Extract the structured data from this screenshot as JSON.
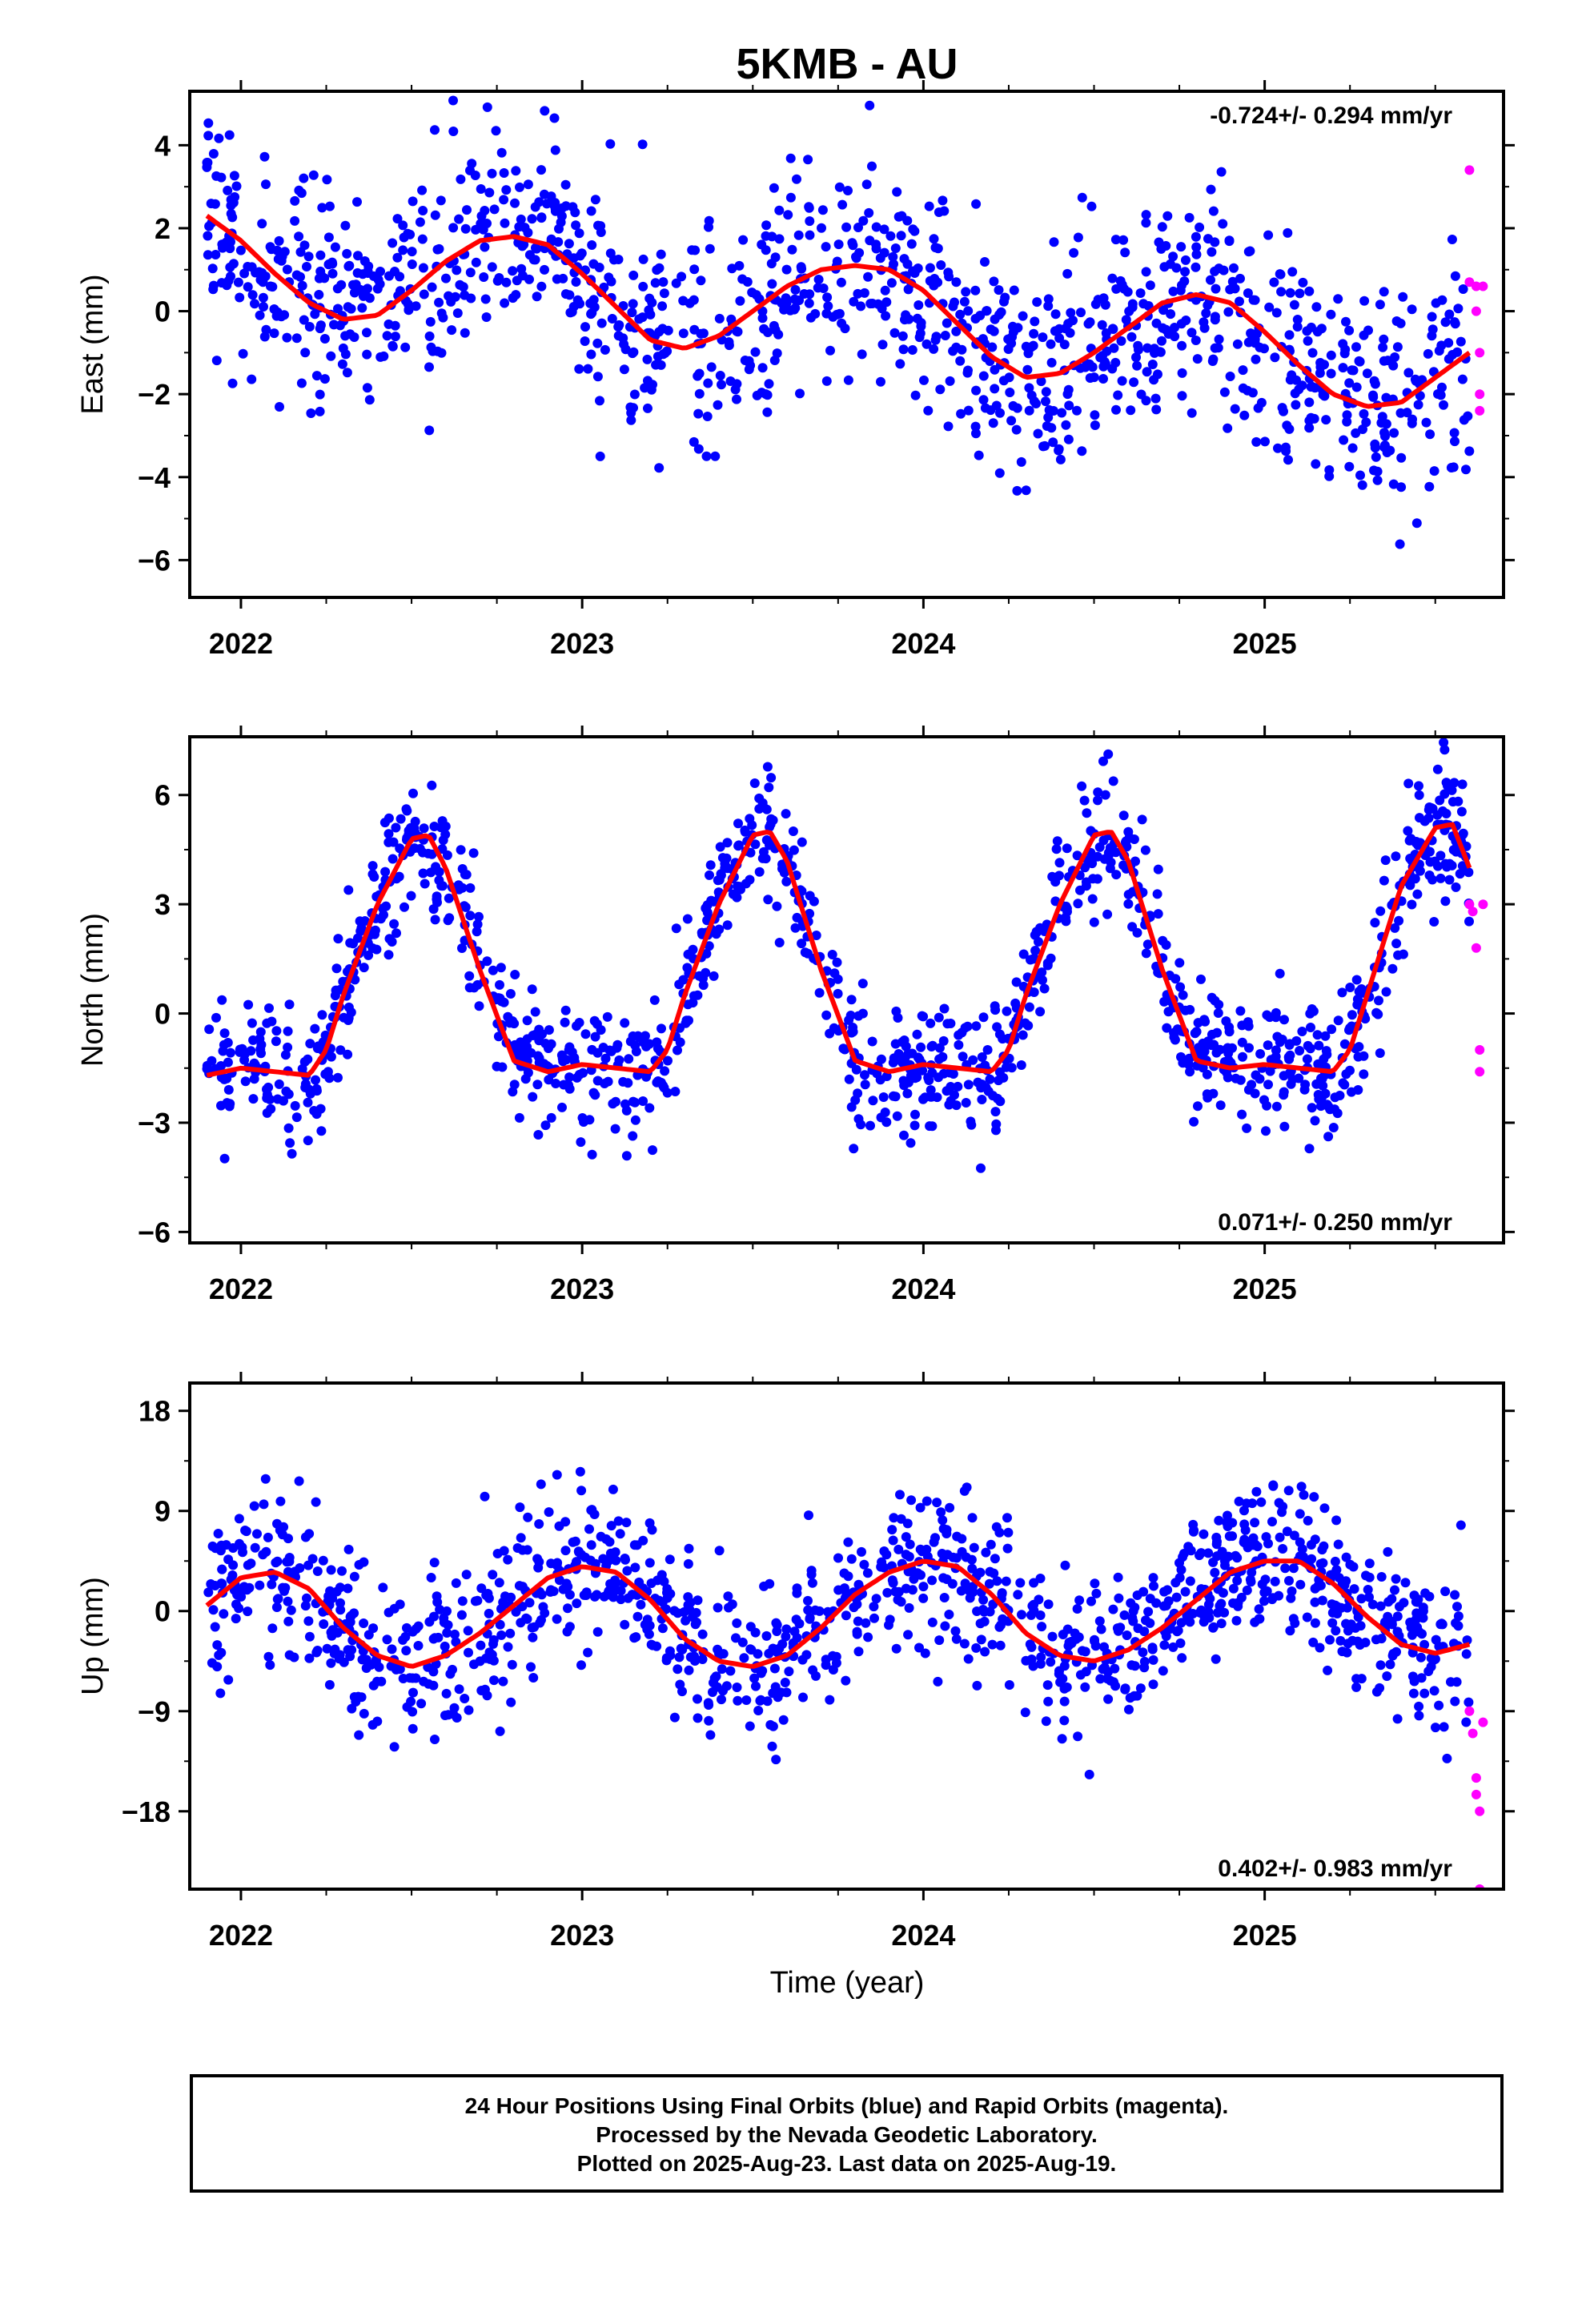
{
  "title": "5KMB - AU",
  "xlabel": "Time (year)",
  "footer": {
    "line1": "24 Hour Positions Using Final Orbits (blue) and Rapid Orbits (magenta).",
    "line2": "Processed by the Nevada Geodetic Laboratory.",
    "line3": "Plotted on 2025-Aug-23. Last data on 2025-Aug-19."
  },
  "colors": {
    "final": "#0000ff",
    "rapid": "#ff00ff",
    "fit": "#ff0000",
    "frame": "#000000"
  },
  "chart_data": [
    {
      "type": "scatter",
      "panel": "east",
      "ylabel": "East (mm)",
      "rate_text": "-0.724+/- 0.294 mm/yr",
      "rate_position": "top-right",
      "xlim": [
        2021.85,
        2025.7
      ],
      "ylim": [
        -6.9,
        5.3
      ],
      "yticks": [
        -6,
        -4,
        -2,
        0,
        2,
        4
      ],
      "xticks": [
        2022,
        2023,
        2024,
        2025
      ],
      "fit_curve": {
        "x": [
          2021.9,
          2022.0,
          2022.1,
          2022.2,
          2022.3,
          2022.4,
          2022.5,
          2022.6,
          2022.7,
          2022.8,
          2022.9,
          2023.0,
          2023.1,
          2023.2,
          2023.3,
          2023.4,
          2023.5,
          2023.6,
          2023.7,
          2023.8,
          2023.9,
          2024.0,
          2024.1,
          2024.2,
          2024.3,
          2024.4,
          2024.5,
          2024.6,
          2024.7,
          2024.8,
          2024.9,
          2025.0,
          2025.1,
          2025.2,
          2025.3,
          2025.4,
          2025.5,
          2025.6
        ],
        "y": [
          2.3,
          1.7,
          0.9,
          0.2,
          -0.2,
          -0.1,
          0.5,
          1.2,
          1.7,
          1.8,
          1.6,
          0.9,
          0.1,
          -0.7,
          -0.9,
          -0.6,
          0.0,
          0.6,
          1.0,
          1.1,
          1.0,
          0.5,
          -0.3,
          -1.1,
          -1.6,
          -1.5,
          -1.0,
          -0.4,
          0.2,
          0.4,
          0.2,
          -0.5,
          -1.3,
          -2.0,
          -2.3,
          -2.2,
          -1.6,
          -1.0
        ]
      },
      "final_points": {
        "count": 1250,
        "x_range": [
          2021.9,
          2025.6
        ],
        "envelope_x": [
          2021.9,
          2022.2,
          2022.5,
          2022.8,
          2023.0,
          2023.3,
          2023.6,
          2023.9,
          2024.2,
          2024.5,
          2024.8,
          2025.1,
          2025.4,
          2025.6
        ],
        "envelope_y": [
          2.3,
          0.0,
          0.6,
          1.9,
          0.8,
          -1.0,
          0.5,
          1.2,
          -1.2,
          -1.4,
          0.4,
          -1.6,
          -2.2,
          -1.0
        ],
        "spread": 1.3
      },
      "rapid_points": {
        "x": [
          2025.6,
          2025.6,
          2025.62,
          2025.62,
          2025.63,
          2025.63,
          2025.63,
          2025.64
        ],
        "y": [
          3.4,
          0.7,
          0.6,
          0.0,
          -2.0,
          -2.4,
          -1.0,
          0.6
        ]
      }
    },
    {
      "type": "scatter",
      "panel": "north",
      "ylabel": "North (mm)",
      "rate_text": "0.071+/- 0.250 mm/yr",
      "rate_position": "bottom-right",
      "xlim": [
        2021.85,
        2025.7
      ],
      "ylim": [
        -6.3,
        7.6
      ],
      "yticks": [
        -6,
        -3,
        0,
        3,
        6
      ],
      "xticks": [
        2022,
        2023,
        2024,
        2025
      ],
      "fit_curve": {
        "x": [
          2021.9,
          2022.0,
          2022.1,
          2022.2,
          2022.25,
          2022.3,
          2022.4,
          2022.5,
          2022.55,
          2022.6,
          2022.7,
          2022.8,
          2022.9,
          2023.0,
          2023.1,
          2023.2,
          2023.25,
          2023.3,
          2023.4,
          2023.5,
          2023.55,
          2023.6,
          2023.7,
          2023.8,
          2023.9,
          2024.0,
          2024.1,
          2024.2,
          2024.25,
          2024.3,
          2024.4,
          2024.5,
          2024.55,
          2024.6,
          2024.7,
          2024.8,
          2024.9,
          2025.0,
          2025.1,
          2025.2,
          2025.25,
          2025.3,
          2025.4,
          2025.5,
          2025.55,
          2025.6
        ],
        "y": [
          -1.7,
          -1.5,
          -1.6,
          -1.7,
          -1.0,
          0.5,
          3.0,
          4.8,
          4.9,
          4.0,
          1.2,
          -1.3,
          -1.6,
          -1.4,
          -1.5,
          -1.6,
          -1.0,
          0.5,
          3.0,
          4.9,
          5.0,
          4.2,
          1.2,
          -1.3,
          -1.6,
          -1.4,
          -1.5,
          -1.6,
          -1.0,
          0.5,
          3.0,
          4.9,
          5.0,
          4.2,
          1.2,
          -1.3,
          -1.5,
          -1.4,
          -1.5,
          -1.6,
          -1.0,
          0.5,
          3.5,
          5.1,
          5.2,
          4.0
        ]
      },
      "final_points": {
        "count": 1250,
        "x_range": [
          2021.9,
          2025.6
        ],
        "spread": 0.9
      },
      "rapid_points": {
        "x": [
          2025.6,
          2025.61,
          2025.62,
          2025.63,
          2025.63,
          2025.64
        ],
        "y": [
          3.0,
          2.8,
          1.8,
          -1.0,
          -1.6,
          3.0
        ]
      }
    },
    {
      "type": "scatter",
      "panel": "up",
      "ylabel": "Up (mm)",
      "rate_text": "0.402+/- 0.983 mm/yr",
      "rate_position": "bottom-right",
      "xlim": [
        2021.85,
        2025.7
      ],
      "ylim": [
        -25,
        20.5
      ],
      "yticks": [
        -18,
        -9,
        0,
        9,
        18
      ],
      "xticks": [
        2022,
        2023,
        2024,
        2025
      ],
      "fit_curve": {
        "x": [
          2021.9,
          2022.0,
          2022.1,
          2022.2,
          2022.3,
          2022.4,
          2022.5,
          2022.6,
          2022.7,
          2022.8,
          2022.9,
          2023.0,
          2023.1,
          2023.2,
          2023.3,
          2023.4,
          2023.5,
          2023.6,
          2023.7,
          2023.8,
          2023.9,
          2024.0,
          2024.1,
          2024.2,
          2024.3,
          2024.4,
          2024.5,
          2024.6,
          2024.7,
          2024.8,
          2024.9,
          2025.0,
          2025.1,
          2025.2,
          2025.3,
          2025.4,
          2025.5,
          2025.6
        ],
        "y": [
          0.5,
          3.0,
          3.5,
          2.0,
          -1.5,
          -4.0,
          -5.0,
          -4.0,
          -2.0,
          0.5,
          3.0,
          4.0,
          3.5,
          1.0,
          -2.5,
          -4.5,
          -5.0,
          -4.0,
          -1.5,
          1.5,
          3.5,
          4.5,
          4.0,
          1.5,
          -2.0,
          -4.0,
          -4.5,
          -3.5,
          -1.5,
          1.0,
          3.5,
          4.5,
          4.5,
          2.5,
          -0.5,
          -3.0,
          -3.8,
          -3.0
        ]
      },
      "final_points": {
        "count": 1250,
        "x_range": [
          2021.9,
          2025.6
        ],
        "spread": 3.5
      },
      "rapid_points": {
        "x": [
          2025.6,
          2025.61,
          2025.62,
          2025.62,
          2025.63,
          2025.63,
          2025.64
        ],
        "y": [
          -9.0,
          -11.0,
          -15.0,
          -16.5,
          -18.0,
          -25.0,
          -10.0
        ]
      }
    }
  ]
}
